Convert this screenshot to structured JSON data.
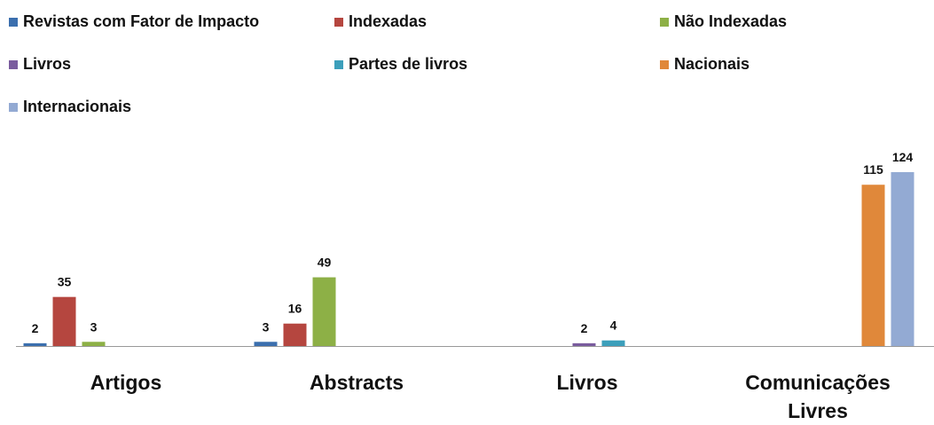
{
  "chart_data": {
    "type": "bar",
    "categories": [
      "Artigos",
      "Abstracts",
      "Livros",
      "Comunicações Livres"
    ],
    "series": [
      {
        "name": "Revistas com Fator de Impacto",
        "color": "#3b6fae",
        "values": [
          2,
          3,
          null,
          null
        ]
      },
      {
        "name": "Indexadas",
        "color": "#b5463f",
        "values": [
          35,
          16,
          null,
          null
        ]
      },
      {
        "name": "Não Indexadas",
        "color": "#8db046",
        "values": [
          3,
          49,
          null,
          null
        ]
      },
      {
        "name": "Livros",
        "color": "#7a5c9e",
        "values": [
          null,
          null,
          2,
          null
        ]
      },
      {
        "name": "Partes de livros",
        "color": "#3c9fbb",
        "values": [
          null,
          null,
          4,
          null
        ]
      },
      {
        "name": "Nacionais",
        "color": "#e0883a",
        "values": [
          null,
          null,
          null,
          115
        ]
      },
      {
        "name": "Internacionais",
        "color": "#93aad3",
        "values": [
          null,
          null,
          null,
          124
        ]
      }
    ],
    "legend": "top"
  }
}
